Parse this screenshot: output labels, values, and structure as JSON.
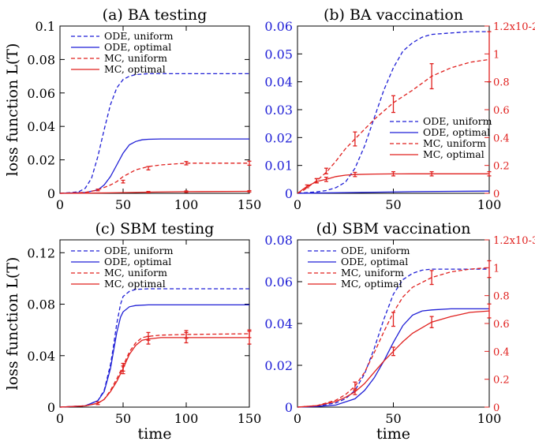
{
  "figure": {
    "ylabel": "loss function L(T)",
    "xlabel": "time"
  },
  "colors": {
    "blue": "#1f1fd6",
    "red": "#e0201e",
    "axis": "#000000"
  },
  "chart_data": [
    {
      "id": "a",
      "type": "line",
      "title": "(a) BA testing",
      "xlim": [
        0,
        150
      ],
      "xticks": [
        "0",
        "50",
        "100",
        "150"
      ],
      "ylim": [
        0,
        0.1
      ],
      "yticks": [
        "0",
        "0.02",
        "0.04",
        "0.06",
        "0.08",
        "0.1"
      ],
      "legend": "top-left",
      "series": [
        {
          "name": "ODE, uniform",
          "color": "blue",
          "dash": true,
          "axis": "left",
          "x": [
            0,
            10,
            15,
            20,
            25,
            30,
            35,
            40,
            45,
            50,
            55,
            60,
            70,
            80,
            100,
            150
          ],
          "y": [
            0,
            0.0005,
            0.001,
            0.003,
            0.009,
            0.022,
            0.038,
            0.053,
            0.063,
            0.068,
            0.07,
            0.071,
            0.0715,
            0.0715,
            0.0715,
            0.0715
          ]
        },
        {
          "name": "ODE, optimal",
          "color": "blue",
          "dash": false,
          "axis": "left",
          "x": [
            0,
            20,
            30,
            35,
            40,
            45,
            50,
            55,
            60,
            65,
            70,
            80,
            100,
            150
          ],
          "y": [
            0,
            0.0005,
            0.002,
            0.005,
            0.01,
            0.017,
            0.024,
            0.029,
            0.031,
            0.032,
            0.0323,
            0.0325,
            0.0325,
            0.0325
          ]
        },
        {
          "name": "MC, uniform",
          "color": "red",
          "dash": true,
          "axis": "left",
          "x": [
            0,
            20,
            30,
            40,
            45,
            50,
            55,
            60,
            70,
            80,
            100,
            150
          ],
          "y": [
            0,
            0.0005,
            0.002,
            0.005,
            0.007,
            0.01,
            0.012,
            0.014,
            0.016,
            0.017,
            0.018,
            0.018
          ]
        },
        {
          "name": "MC, optimal",
          "color": "red",
          "dash": false,
          "axis": "left",
          "x": [
            0,
            20,
            40,
            60,
            70,
            100,
            150
          ],
          "y": [
            0,
            0.0001,
            0.0003,
            0.0005,
            0.0007,
            0.001,
            0.0012
          ]
        }
      ],
      "errorbars": [
        {
          "color": "red",
          "x": [
            30,
            50,
            70,
            100,
            150
          ],
          "y": [
            0.002,
            0.007,
            0.015,
            0.018,
            0.018
          ],
          "err": [
            0.0005,
            0.0008,
            0.001,
            0.001,
            0.0012
          ]
        },
        {
          "color": "red",
          "x": [
            70,
            100,
            150
          ],
          "y": [
            0.0007,
            0.001,
            0.0012
          ],
          "err": [
            0.0004,
            0.0004,
            0.0004
          ]
        }
      ]
    },
    {
      "id": "b",
      "type": "line",
      "title": "(b) BA vaccination",
      "xlim": [
        0,
        100
      ],
      "xticks": [
        "0",
        "50",
        "100"
      ],
      "ylim": [
        0,
        0.06
      ],
      "yticks": [
        "0",
        "0.01",
        "0.02",
        "0.03",
        "0.04",
        "0.05",
        "0.06"
      ],
      "ylim_right": [
        0,
        1.2
      ],
      "yticks_right": [
        "0",
        "0.2",
        "0.4",
        "0.6",
        "0.8",
        "1",
        "1.2x10-2"
      ],
      "legend": "center-right",
      "series": [
        {
          "name": "ODE, uniform",
          "color": "blue",
          "dash": true,
          "axis": "left",
          "x": [
            0,
            10,
            15,
            20,
            25,
            30,
            35,
            40,
            45,
            50,
            55,
            60,
            65,
            70,
            80,
            90,
            100
          ],
          "y": [
            0,
            0.0005,
            0.001,
            0.002,
            0.004,
            0.009,
            0.017,
            0.027,
            0.037,
            0.045,
            0.051,
            0.054,
            0.056,
            0.057,
            0.0575,
            0.058,
            0.058
          ]
        },
        {
          "name": "ODE, optimal",
          "color": "blue",
          "dash": false,
          "axis": "left",
          "x": [
            0,
            20,
            40,
            60,
            80,
            100
          ],
          "y": [
            0,
            0.0002,
            0.0004,
            0.0006,
            0.0007,
            0.0008
          ]
        },
        {
          "name": "MC, uniform",
          "color": "red",
          "dash": true,
          "axis": "right",
          "x": [
            0,
            3,
            5,
            10,
            15,
            20,
            25,
            30,
            35,
            40,
            45,
            50,
            60,
            70,
            80,
            90,
            100
          ],
          "y": [
            0,
            0.02,
            0.04,
            0.09,
            0.15,
            0.23,
            0.32,
            0.39,
            0.46,
            0.53,
            0.59,
            0.65,
            0.74,
            0.84,
            0.9,
            0.94,
            0.96
          ]
        },
        {
          "name": "MC, optimal",
          "color": "red",
          "dash": false,
          "axis": "right",
          "x": [
            0,
            3,
            5,
            8,
            10,
            15,
            20,
            25,
            30,
            40,
            50,
            60,
            70,
            80,
            100
          ],
          "y": [
            0,
            0.03,
            0.05,
            0.07,
            0.085,
            0.1,
            0.12,
            0.13,
            0.135,
            0.138,
            0.139,
            0.14,
            0.14,
            0.14,
            0.14
          ]
        }
      ],
      "errorbars": [
        {
          "color": "red",
          "x": [
            10,
            15,
            30,
            50,
            70,
            100
          ],
          "y": [
            0.09,
            0.16,
            0.39,
            0.64,
            0.84,
            0.98
          ],
          "err": [
            0.015,
            0.02,
            0.05,
            0.06,
            0.09,
            0.18
          ]
        },
        {
          "color": "red",
          "x": [
            5,
            10,
            15,
            30,
            50,
            70,
            100
          ],
          "y": [
            0.05,
            0.09,
            0.1,
            0.135,
            0.14,
            0.14,
            0.14
          ],
          "err": [
            0.01,
            0.015,
            0.015,
            0.015,
            0.015,
            0.015,
            0.015
          ]
        }
      ]
    },
    {
      "id": "c",
      "type": "line",
      "title": "(c) SBM testing",
      "xlim": [
        0,
        150
      ],
      "xticks": [
        "0",
        "50",
        "100",
        "150"
      ],
      "ylim": [
        0,
        0.13
      ],
      "yticks": [
        "0",
        "0.04",
        "0.08",
        "0.12"
      ],
      "legend": "top-left",
      "series": [
        {
          "name": "ODE, uniform",
          "color": "blue",
          "dash": true,
          "axis": "left",
          "x": [
            0,
            20,
            30,
            35,
            40,
            42,
            45,
            48,
            50,
            55,
            60,
            70,
            80,
            100,
            150
          ],
          "y": [
            0,
            0.001,
            0.005,
            0.013,
            0.033,
            0.045,
            0.065,
            0.08,
            0.086,
            0.09,
            0.0915,
            0.092,
            0.092,
            0.092,
            0.092
          ]
        },
        {
          "name": "ODE, optimal",
          "color": "blue",
          "dash": false,
          "axis": "left",
          "x": [
            0,
            20,
            30,
            35,
            40,
            45,
            48,
            50,
            55,
            60,
            70,
            80,
            100,
            150
          ],
          "y": [
            0,
            0.001,
            0.005,
            0.012,
            0.03,
            0.058,
            0.07,
            0.074,
            0.078,
            0.079,
            0.0795,
            0.0795,
            0.0795,
            0.0795
          ]
        },
        {
          "name": "MC, uniform",
          "color": "red",
          "dash": true,
          "axis": "left",
          "x": [
            0,
            20,
            30,
            35,
            40,
            45,
            50,
            55,
            60,
            65,
            70,
            80,
            100,
            150
          ],
          "y": [
            0,
            0.001,
            0.003,
            0.006,
            0.013,
            0.022,
            0.032,
            0.043,
            0.05,
            0.054,
            0.055,
            0.056,
            0.0565,
            0.057
          ]
        },
        {
          "name": "MC, optimal",
          "color": "red",
          "dash": false,
          "axis": "left",
          "x": [
            0,
            20,
            30,
            35,
            40,
            45,
            50,
            55,
            60,
            65,
            70,
            80,
            100,
            150
          ],
          "y": [
            0,
            0.001,
            0.003,
            0.006,
            0.012,
            0.02,
            0.03,
            0.041,
            0.048,
            0.052,
            0.053,
            0.054,
            0.054,
            0.054
          ]
        }
      ],
      "errorbars": [
        {
          "color": "red",
          "x": [
            30,
            50,
            70,
            100,
            150
          ],
          "y": [
            0.003,
            0.031,
            0.055,
            0.0565,
            0.057
          ],
          "err": [
            0.001,
            0.003,
            0.003,
            0.003,
            0.003
          ]
        },
        {
          "color": "red",
          "x": [
            50,
            70,
            100,
            150
          ],
          "y": [
            0.029,
            0.052,
            0.054,
            0.054
          ],
          "err": [
            0.003,
            0.003,
            0.004,
            0.005
          ]
        }
      ]
    },
    {
      "id": "d",
      "type": "line",
      "title": "(d) SBM vaccination",
      "xlim": [
        0,
        100
      ],
      "xticks": [
        "0",
        "50",
        "100"
      ],
      "ylim": [
        0,
        0.08
      ],
      "yticks": [
        "0",
        "0.02",
        "0.04",
        "0.06",
        "0.08"
      ],
      "ylim_right": [
        0,
        1.2
      ],
      "yticks_right": [
        "0",
        "0.2",
        "0.4",
        "0.6",
        "0.8",
        "1",
        "1.2x10-3"
      ],
      "legend": "top-left",
      "series": [
        {
          "name": "ODE, uniform",
          "color": "blue",
          "dash": true,
          "axis": "left",
          "x": [
            0,
            10,
            20,
            25,
            30,
            35,
            40,
            45,
            50,
            55,
            60,
            65,
            70,
            80,
            100
          ],
          "y": [
            0,
            0.0005,
            0.002,
            0.004,
            0.008,
            0.016,
            0.028,
            0.042,
            0.054,
            0.061,
            0.064,
            0.0655,
            0.066,
            0.066,
            0.066
          ]
        },
        {
          "name": "ODE, optimal",
          "color": "blue",
          "dash": false,
          "axis": "left",
          "x": [
            0,
            10,
            20,
            30,
            35,
            40,
            45,
            50,
            55,
            60,
            65,
            70,
            80,
            100
          ],
          "y": [
            0,
            0.0003,
            0.001,
            0.004,
            0.008,
            0.014,
            0.022,
            0.031,
            0.039,
            0.044,
            0.046,
            0.0465,
            0.047,
            0.047
          ]
        },
        {
          "name": "MC, uniform",
          "color": "red",
          "dash": true,
          "axis": "right",
          "x": [
            0,
            10,
            20,
            25,
            30,
            35,
            40,
            45,
            50,
            55,
            60,
            70,
            80,
            90,
            100
          ],
          "y": [
            0,
            0.01,
            0.05,
            0.09,
            0.15,
            0.25,
            0.39,
            0.54,
            0.68,
            0.79,
            0.86,
            0.93,
            0.97,
            0.99,
            1.0
          ]
        },
        {
          "name": "MC, optimal",
          "color": "red",
          "dash": false,
          "axis": "right",
          "x": [
            0,
            10,
            20,
            25,
            30,
            35,
            40,
            45,
            50,
            55,
            60,
            70,
            80,
            90,
            100
          ],
          "y": [
            0,
            0.01,
            0.04,
            0.07,
            0.11,
            0.17,
            0.25,
            0.33,
            0.4,
            0.47,
            0.53,
            0.61,
            0.65,
            0.68,
            0.69
          ]
        }
      ],
      "errorbars": [
        {
          "color": "red",
          "x": [
            30,
            50,
            70,
            100
          ],
          "y": [
            0.15,
            0.63,
            0.93,
            0.99
          ],
          "err": [
            0.03,
            0.05,
            0.05,
            0.06
          ]
        },
        {
          "color": "red",
          "x": [
            30,
            50,
            70,
            100
          ],
          "y": [
            0.11,
            0.4,
            0.61,
            0.69
          ],
          "err": [
            0.02,
            0.03,
            0.04,
            0.05
          ]
        }
      ]
    }
  ]
}
